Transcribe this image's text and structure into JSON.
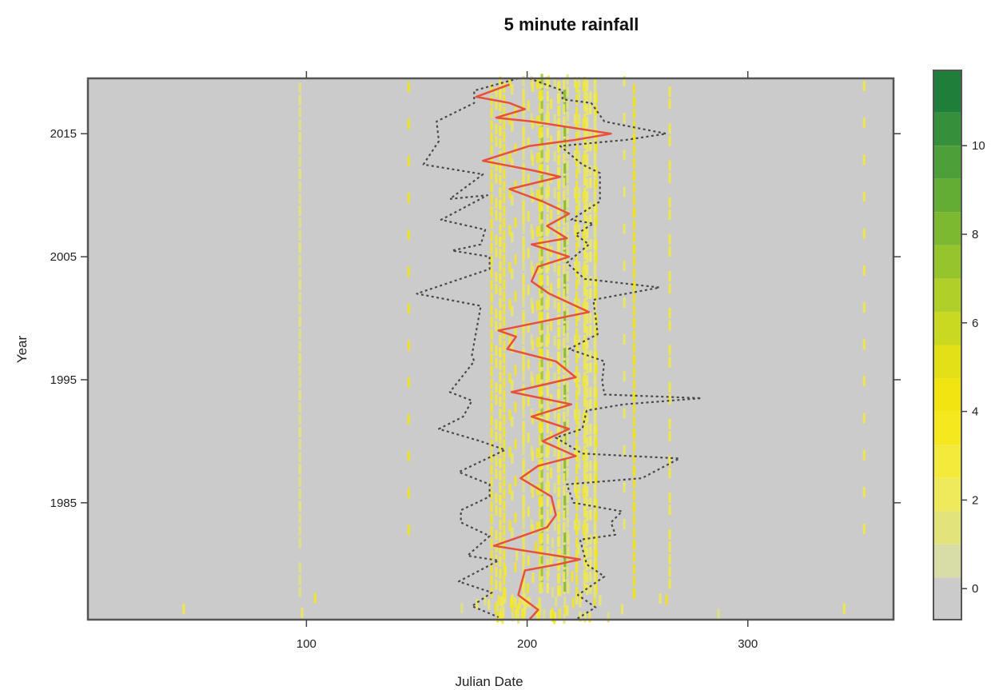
{
  "chart_data": {
    "type": "heatmap",
    "title": "5 minute rainfall",
    "xlabel": "Julian Date",
    "ylabel": "Year",
    "xlim": [
      1,
      366
    ],
    "ylim": [
      1975.5,
      2019.5
    ],
    "x_ticks": [
      100,
      200,
      300
    ],
    "x_tick_labels": [
      "100",
      "200",
      "300"
    ],
    "y_ticks": [
      1985,
      1995,
      2005,
      2015
    ],
    "y_tick_labels": [
      "1985",
      "1995",
      "2005",
      "2015"
    ],
    "colorkey": {
      "range": [
        -0.7,
        11.7
      ],
      "ticks": [
        0,
        2,
        4,
        6,
        8,
        10
      ],
      "tick_labels": [
        "0",
        "2",
        "4",
        "6",
        "8",
        "10"
      ],
      "background_color": "#cbcbcb",
      "bands": [
        {
          "from": -0.7,
          "to": 0.25,
          "color": "#cbcbcb"
        },
        {
          "from": 0.25,
          "to": 1.0,
          "color": "#d8dca6"
        },
        {
          "from": 1.0,
          "to": 1.75,
          "color": "#e3e37c"
        },
        {
          "from": 1.75,
          "to": 2.5,
          "color": "#eeea5c"
        },
        {
          "from": 2.5,
          "to": 3.25,
          "color": "#f3ea3c"
        },
        {
          "from": 3.25,
          "to": 4.0,
          "color": "#f5e81e"
        },
        {
          "from": 4.0,
          "to": 4.75,
          "color": "#f2e411"
        },
        {
          "from": 4.75,
          "to": 5.5,
          "color": "#e3e017"
        },
        {
          "from": 5.5,
          "to": 6.25,
          "color": "#c9d820"
        },
        {
          "from": 6.25,
          "to": 7.0,
          "color": "#b0cf28"
        },
        {
          "from": 7.0,
          "to": 7.75,
          "color": "#95c42c"
        },
        {
          "from": 7.75,
          "to": 8.5,
          "color": "#7cb930"
        },
        {
          "from": 8.5,
          "to": 9.25,
          "color": "#63ad35"
        },
        {
          "from": 9.25,
          "to": 10.0,
          "color": "#4da039"
        },
        {
          "from": 10.0,
          "to": 10.75,
          "color": "#36903b"
        },
        {
          "from": 10.75,
          "to": 11.7,
          "color": "#1f7e3a"
        }
      ]
    },
    "series": [
      {
        "style": "solid",
        "color": "#e8503a",
        "points": [
          [
            192,
            2019
          ],
          [
            177,
            2018
          ],
          [
            192,
            2017.5
          ],
          [
            199,
            2017
          ],
          [
            186,
            2016.3
          ],
          [
            202,
            2016
          ],
          [
            238,
            2015
          ],
          [
            222,
            2014.5
          ],
          [
            201,
            2014
          ],
          [
            180,
            2012.8
          ],
          [
            203,
            2012
          ],
          [
            215,
            2011.5
          ],
          [
            192,
            2010.5
          ],
          [
            207,
            2009.5
          ],
          [
            219,
            2008.5
          ],
          [
            209,
            2007.5
          ],
          [
            218,
            2006.5
          ],
          [
            202,
            2006
          ],
          [
            219,
            2005
          ],
          [
            205,
            2004.2
          ],
          [
            202,
            2003
          ],
          [
            210,
            2002
          ],
          [
            228,
            2000.5
          ],
          [
            187,
            1999
          ],
          [
            195,
            1998.5
          ],
          [
            191,
            1997.5
          ],
          [
            213,
            1996.5
          ],
          [
            222,
            1995.2
          ],
          [
            193,
            1994
          ],
          [
            220,
            1993
          ],
          [
            202,
            1992
          ],
          [
            219,
            1991
          ],
          [
            207,
            1990
          ],
          [
            222,
            1988.8
          ],
          [
            205,
            1988
          ],
          [
            197,
            1987
          ],
          [
            211,
            1985.5
          ],
          [
            213,
            1984
          ],
          [
            209,
            1983
          ],
          [
            185,
            1981.5
          ],
          [
            224,
            1980.4
          ],
          [
            214,
            1980
          ],
          [
            199,
            1979.5
          ],
          [
            196,
            1977.5
          ],
          [
            205,
            1976.3
          ],
          [
            201,
            1975.5
          ]
        ]
      },
      {
        "style": "dotted",
        "color": "#4a4a4a",
        "points": [
          [
            196,
            2019.5
          ],
          [
            176,
            2018.5
          ],
          [
            176,
            2017.5
          ],
          [
            159,
            2016
          ],
          [
            160,
            2014.4
          ],
          [
            153,
            2012.5
          ],
          [
            180,
            2011.7
          ],
          [
            165,
            2009.7
          ],
          [
            182,
            2010
          ],
          [
            161,
            2008
          ],
          [
            181,
            2007.2
          ],
          [
            179,
            2006
          ],
          [
            166,
            2005.5
          ],
          [
            183,
            2005
          ],
          [
            183,
            2004
          ],
          [
            150,
            2002
          ],
          [
            179,
            2001
          ],
          [
            175,
            1997
          ],
          [
            176,
            1996.5
          ],
          [
            165,
            1994
          ],
          [
            175,
            1993.3
          ],
          [
            171,
            1992
          ],
          [
            160,
            1991
          ],
          [
            179,
            1990
          ],
          [
            190,
            1989.3
          ],
          [
            169,
            1987.5
          ],
          [
            183,
            1986.5
          ],
          [
            183,
            1985.5
          ],
          [
            170,
            1984.4
          ],
          [
            170,
            1983.4
          ],
          [
            183,
            1982.3
          ],
          [
            173,
            1980.7
          ],
          [
            187,
            1980.3
          ],
          [
            169,
            1978.6
          ],
          [
            184,
            1977.7
          ],
          [
            175,
            1976.6
          ],
          [
            187,
            1975.7
          ]
        ]
      },
      {
        "style": "dotted",
        "color": "#4a4a4a",
        "points": [
          [
            201,
            2019.5
          ],
          [
            216,
            2018.5
          ],
          [
            216,
            2017.8
          ],
          [
            229,
            2017.5
          ],
          [
            235,
            2016
          ],
          [
            263,
            2015
          ],
          [
            245,
            2014.5
          ],
          [
            215,
            2014
          ],
          [
            225,
            2012.5
          ],
          [
            233,
            2011.8
          ],
          [
            233,
            2010.5
          ],
          [
            233,
            2009.5
          ],
          [
            220,
            2008
          ],
          [
            230,
            2007.7
          ],
          [
            222,
            2006.8
          ],
          [
            228,
            2006
          ],
          [
            218,
            2004.5
          ],
          [
            226,
            2003.2
          ],
          [
            260,
            2002.5
          ],
          [
            245,
            2002
          ],
          [
            230,
            2001.5
          ],
          [
            232,
            1998.7
          ],
          [
            219,
            1997.5
          ],
          [
            235,
            1996.5
          ],
          [
            234,
            1994.9
          ],
          [
            235,
            1993.8
          ],
          [
            279,
            1993.5
          ],
          [
            244,
            1993
          ],
          [
            227,
            1992.5
          ],
          [
            225,
            1991
          ],
          [
            213,
            1990.3
          ],
          [
            225,
            1989
          ],
          [
            269,
            1988.6
          ],
          [
            252,
            1987
          ],
          [
            218,
            1986.5
          ],
          [
            221,
            1985
          ],
          [
            243,
            1984.3
          ],
          [
            238,
            1983.4
          ],
          [
            240,
            1982.4
          ],
          [
            224,
            1982
          ],
          [
            227,
            1980
          ],
          [
            235,
            1979
          ],
          [
            223,
            1977.5
          ],
          [
            231,
            1976.5
          ],
          [
            222,
            1975.5
          ]
        ]
      }
    ]
  }
}
